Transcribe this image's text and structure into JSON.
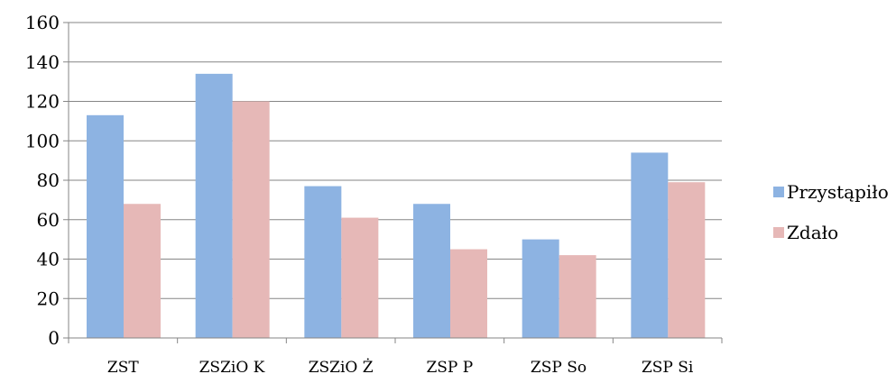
{
  "chart_data": {
    "type": "bar",
    "categories": [
      "ZST",
      "ZSZiO K",
      "ZSZiO Ż",
      "ZSP P",
      "ZSP So",
      "ZSP Si"
    ],
    "series": [
      {
        "name": "Przystąpiło",
        "color": "#8DB3E2",
        "values": [
          113,
          134,
          77,
          68,
          50,
          94
        ]
      },
      {
        "name": "Zdało",
        "color": "#E6B8B7",
        "values": [
          68,
          120,
          61,
          45,
          42,
          79
        ]
      }
    ],
    "ylim": [
      0,
      160
    ],
    "yticks": [
      "0",
      "20",
      "40",
      "60",
      "80",
      "100",
      "120",
      "140",
      "160"
    ],
    "grid": true,
    "legend_position": "right"
  }
}
